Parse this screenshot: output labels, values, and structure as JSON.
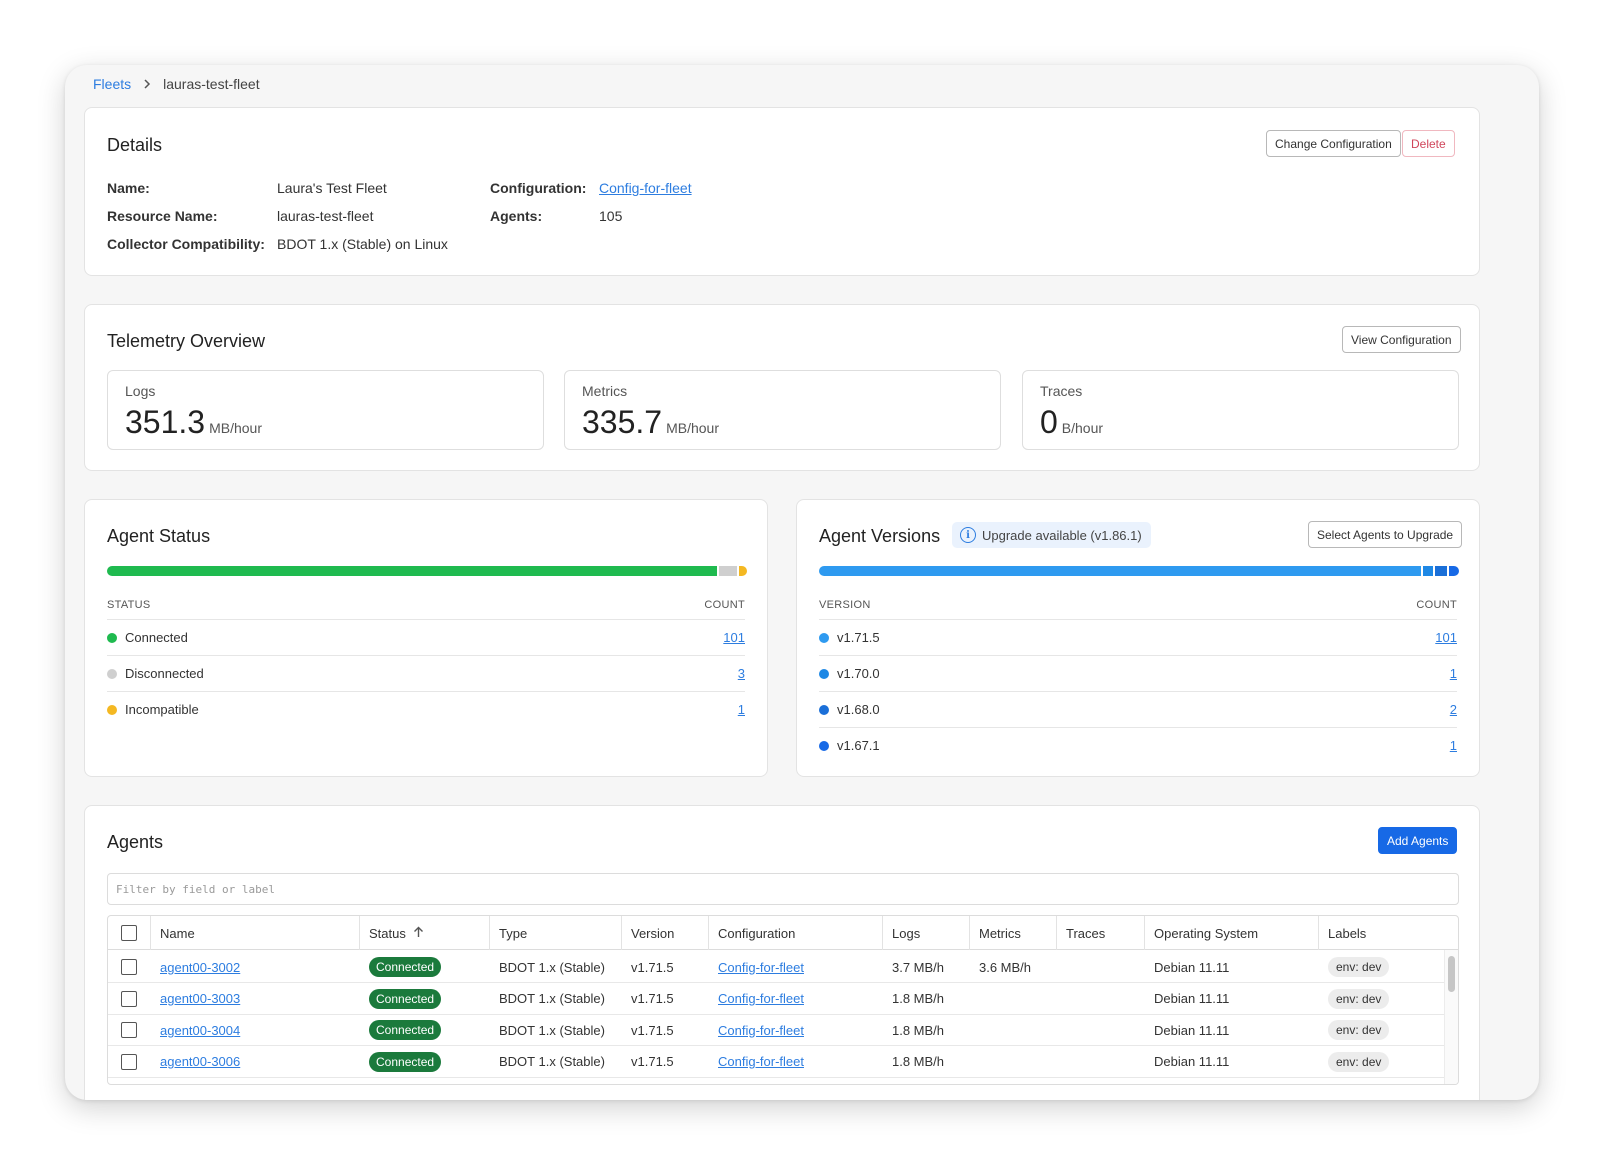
{
  "breadcrumb": {
    "root": "Fleets",
    "current": "lauras-test-fleet"
  },
  "details": {
    "title": "Details",
    "change_config_label": "Change Configuration",
    "delete_label": "Delete",
    "name_label": "Name:",
    "name_value": "Laura's Test Fleet",
    "resource_label": "Resource Name:",
    "resource_value": "lauras-test-fleet",
    "compat_label": "Collector Compatibility:",
    "compat_value": "BDOT 1.x (Stable) on Linux",
    "config_label": "Configuration:",
    "config_value": "Config-for-fleet",
    "agents_label": "Agents:",
    "agents_value": "105"
  },
  "telemetry": {
    "title": "Telemetry Overview",
    "view_config_label": "View Configuration",
    "logs": {
      "label": "Logs",
      "value": "351.3",
      "unit": "MB/hour"
    },
    "metrics": {
      "label": "Metrics",
      "value": "335.7",
      "unit": "MB/hour"
    },
    "traces": {
      "label": "Traces",
      "value": "0",
      "unit": "B/hour"
    }
  },
  "agent_status": {
    "title": "Agent Status",
    "col_status": "STATUS",
    "col_count": "COUNT",
    "rows": [
      {
        "label": "Connected",
        "count": "101",
        "color": "#1fba4f",
        "value": 101
      },
      {
        "label": "Disconnected",
        "count": "3",
        "color": "#cfcfcf",
        "value": 3
      },
      {
        "label": "Incompatible",
        "count": "1",
        "color": "#f4b822",
        "value": 1
      }
    ]
  },
  "agent_versions": {
    "title": "Agent Versions",
    "upgrade_badge": "Upgrade available (v1.86.1)",
    "select_upgrade_label": "Select Agents to Upgrade",
    "col_version": "VERSION",
    "col_count": "COUNT",
    "rows": [
      {
        "label": "v1.71.5",
        "count": "101",
        "color": "#2e9af0",
        "value": 101
      },
      {
        "label": "v1.70.0",
        "count": "1",
        "color": "#1e88e5",
        "value": 1
      },
      {
        "label": "v1.68.0",
        "count": "2",
        "color": "#1a6fd8",
        "value": 2
      },
      {
        "label": "v1.67.1",
        "count": "1",
        "color": "#1769e6",
        "value": 1
      }
    ]
  },
  "agents": {
    "title": "Agents",
    "add_label": "Add Agents",
    "filter_placeholder": "Filter by field or label",
    "columns": [
      "Name",
      "Status",
      "Type",
      "Version",
      "Configuration",
      "Logs",
      "Metrics",
      "Traces",
      "Operating System",
      "Labels"
    ],
    "rows": [
      {
        "name": "agent00-3002",
        "status": "Connected",
        "type": "BDOT 1.x (Stable)",
        "version": "v1.71.5",
        "config": "Config-for-fleet",
        "logs": "3.7 MB/h",
        "metrics": "3.6 MB/h",
        "traces": "",
        "os": "Debian 11.11",
        "label": "env: dev"
      },
      {
        "name": "agent00-3003",
        "status": "Connected",
        "type": "BDOT 1.x (Stable)",
        "version": "v1.71.5",
        "config": "Config-for-fleet",
        "logs": "1.8 MB/h",
        "metrics": "",
        "traces": "",
        "os": "Debian 11.11",
        "label": "env: dev"
      },
      {
        "name": "agent00-3004",
        "status": "Connected",
        "type": "BDOT 1.x (Stable)",
        "version": "v1.71.5",
        "config": "Config-for-fleet",
        "logs": "1.8 MB/h",
        "metrics": "",
        "traces": "",
        "os": "Debian 11.11",
        "label": "env: dev"
      },
      {
        "name": "agent00-3006",
        "status": "Connected",
        "type": "BDOT 1.x (Stable)",
        "version": "v1.71.5",
        "config": "Config-for-fleet",
        "logs": "1.8 MB/h",
        "metrics": "",
        "traces": "",
        "os": "Debian 11.11",
        "label": "env: dev"
      }
    ]
  }
}
